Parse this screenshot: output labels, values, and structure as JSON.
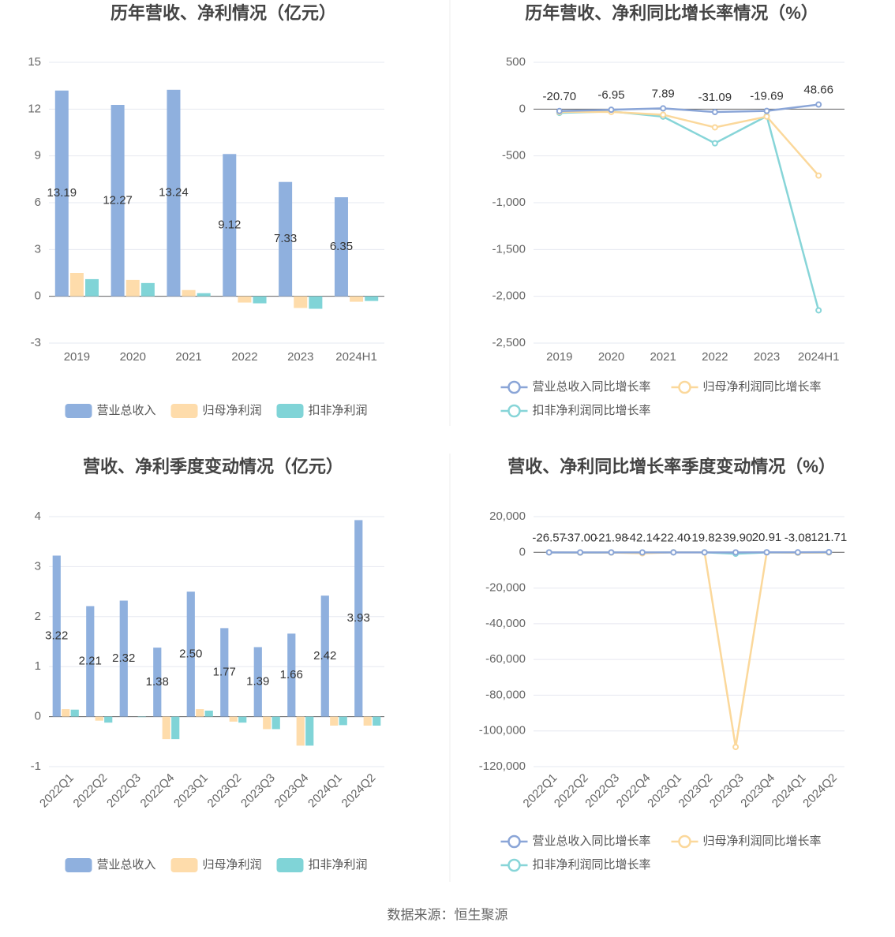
{
  "chart_data": [
    {
      "type": "bar",
      "title": "历年营收、净利情况（亿元）",
      "categories": [
        "2019",
        "2020",
        "2021",
        "2022",
        "2023",
        "2024H1"
      ],
      "series": [
        {
          "name": "营业总收入",
          "color": "#8fb0de",
          "show_labels": true,
          "values": [
            13.19,
            12.27,
            13.24,
            9.12,
            7.33,
            6.35
          ]
        },
        {
          "name": "归母净利润",
          "color": "#fedcab",
          "values": [
            1.5,
            1.05,
            0.4,
            -0.4,
            -0.75,
            -0.35
          ]
        },
        {
          "name": "扣非净利润",
          "color": "#80d4d7",
          "values": [
            1.1,
            0.85,
            0.2,
            -0.45,
            -0.8,
            -0.3
          ]
        }
      ],
      "ylim": [
        -3,
        15
      ],
      "yticks": [
        -3,
        0,
        3,
        6,
        9,
        12,
        15
      ],
      "grid": true
    },
    {
      "type": "line",
      "title": "历年营收、净利同比增长率情况（%）",
      "categories": [
        "2019",
        "2020",
        "2021",
        "2022",
        "2023",
        "2024H1"
      ],
      "series": [
        {
          "name": "营业总收入同比增长率",
          "color": "#8aa5d7",
          "show_labels": true,
          "values": [
            -20.7,
            -6.95,
            7.89,
            -31.09,
            -19.69,
            48.66
          ],
          "value_labels": [
            "-20.70",
            "-6.95",
            "7.89",
            "-31.09",
            "-19.69",
            "48.66"
          ]
        },
        {
          "name": "归母净利润同比增长率",
          "color": "#fbd89b",
          "values": [
            -30,
            -30,
            -60,
            -195,
            -80,
            -710
          ]
        },
        {
          "name": "扣非净利润同比增长率",
          "color": "#87d5d8",
          "values": [
            -40,
            -25,
            -80,
            -365,
            -75,
            -2150
          ]
        }
      ],
      "ylim": [
        -2500,
        500
      ],
      "yticks": [
        {
          "value": -2500,
          "label": "-2,500"
        },
        {
          "value": -2000,
          "label": "-2,000"
        },
        {
          "value": -1500,
          "label": "-1,500"
        },
        {
          "value": -1000,
          "label": "-1,000"
        },
        -500,
        0,
        500
      ],
      "grid": true
    },
    {
      "type": "bar",
      "title": "营收、净利季度变动情况（亿元）",
      "categories": [
        "2022Q1",
        "2022Q2",
        "2022Q3",
        "2022Q4",
        "2023Q1",
        "2023Q2",
        "2023Q3",
        "2023Q4",
        "2024Q1",
        "2024Q2"
      ],
      "series": [
        {
          "name": "营业总收入",
          "color": "#8fb0de",
          "show_labels": true,
          "values": [
            3.22,
            2.21,
            2.32,
            1.38,
            2.5,
            1.77,
            1.39,
            1.66,
            2.42,
            3.93
          ],
          "value_labels": [
            "3.22",
            "2.21",
            "2.32",
            "1.38",
            "2.50",
            "1.77",
            "1.39",
            "1.66",
            "2.42",
            "3.93"
          ]
        },
        {
          "name": "归母净利润",
          "color": "#fedcab",
          "values": [
            0.15,
            -0.08,
            0.0,
            -0.45,
            0.15,
            -0.1,
            -0.25,
            -0.58,
            -0.18,
            -0.18
          ]
        },
        {
          "name": "扣非净利润",
          "color": "#80d4d7",
          "values": [
            0.14,
            -0.12,
            -0.01,
            -0.45,
            0.12,
            -0.12,
            -0.25,
            -0.58,
            -0.17,
            -0.18
          ]
        }
      ],
      "ylim": [
        -1,
        4
      ],
      "yticks": [
        -1,
        0,
        1,
        2,
        3,
        4
      ],
      "grid": true
    },
    {
      "type": "line",
      "title": "营收、净利同比增长率季度变动情况（%）",
      "categories": [
        "2022Q1",
        "2022Q2",
        "2022Q3",
        "2022Q4",
        "2023Q1",
        "2023Q2",
        "2023Q3",
        "2023Q4",
        "2024Q1",
        "2024Q2"
      ],
      "series": [
        {
          "name": "营业总收入同比增长率",
          "color": "#8aa5d7",
          "show_labels": true,
          "values": [
            -26.57,
            -37.0,
            -21.98,
            -42.14,
            -22.4,
            -19.82,
            -39.9,
            20.91,
            -3.08,
            121.71
          ],
          "value_labels": [
            "-26.57",
            "-37.00",
            "-21.98",
            "-42.14",
            "-22.40",
            "-19.82",
            "-39.90",
            "20.91",
            "-3.08",
            "121.71"
          ]
        },
        {
          "name": "归母净利润同比增长率",
          "color": "#fbd89b",
          "values": [
            -20,
            -160,
            -105,
            -530,
            5,
            -30,
            -109000,
            -30,
            -200,
            -110
          ]
        },
        {
          "name": "扣非净利润同比增长率",
          "color": "#87d5d8",
          "values": [
            -30,
            -180,
            -110,
            -300,
            -10,
            0,
            -800,
            -30,
            -200,
            -110
          ]
        }
      ],
      "ylim": [
        -120000,
        20000
      ],
      "yticks": [
        {
          "value": -120000,
          "label": "-120,000"
        },
        {
          "value": -100000,
          "label": "-100,000"
        },
        {
          "value": -80000,
          "label": "-80,000"
        },
        {
          "value": -60000,
          "label": "-60,000"
        },
        {
          "value": -40000,
          "label": "-40,000"
        },
        {
          "value": -20000,
          "label": "-20,000"
        },
        0,
        {
          "value": 20000,
          "label": "20,000"
        }
      ],
      "grid": true
    }
  ],
  "source": "数据来源：恒生聚源"
}
